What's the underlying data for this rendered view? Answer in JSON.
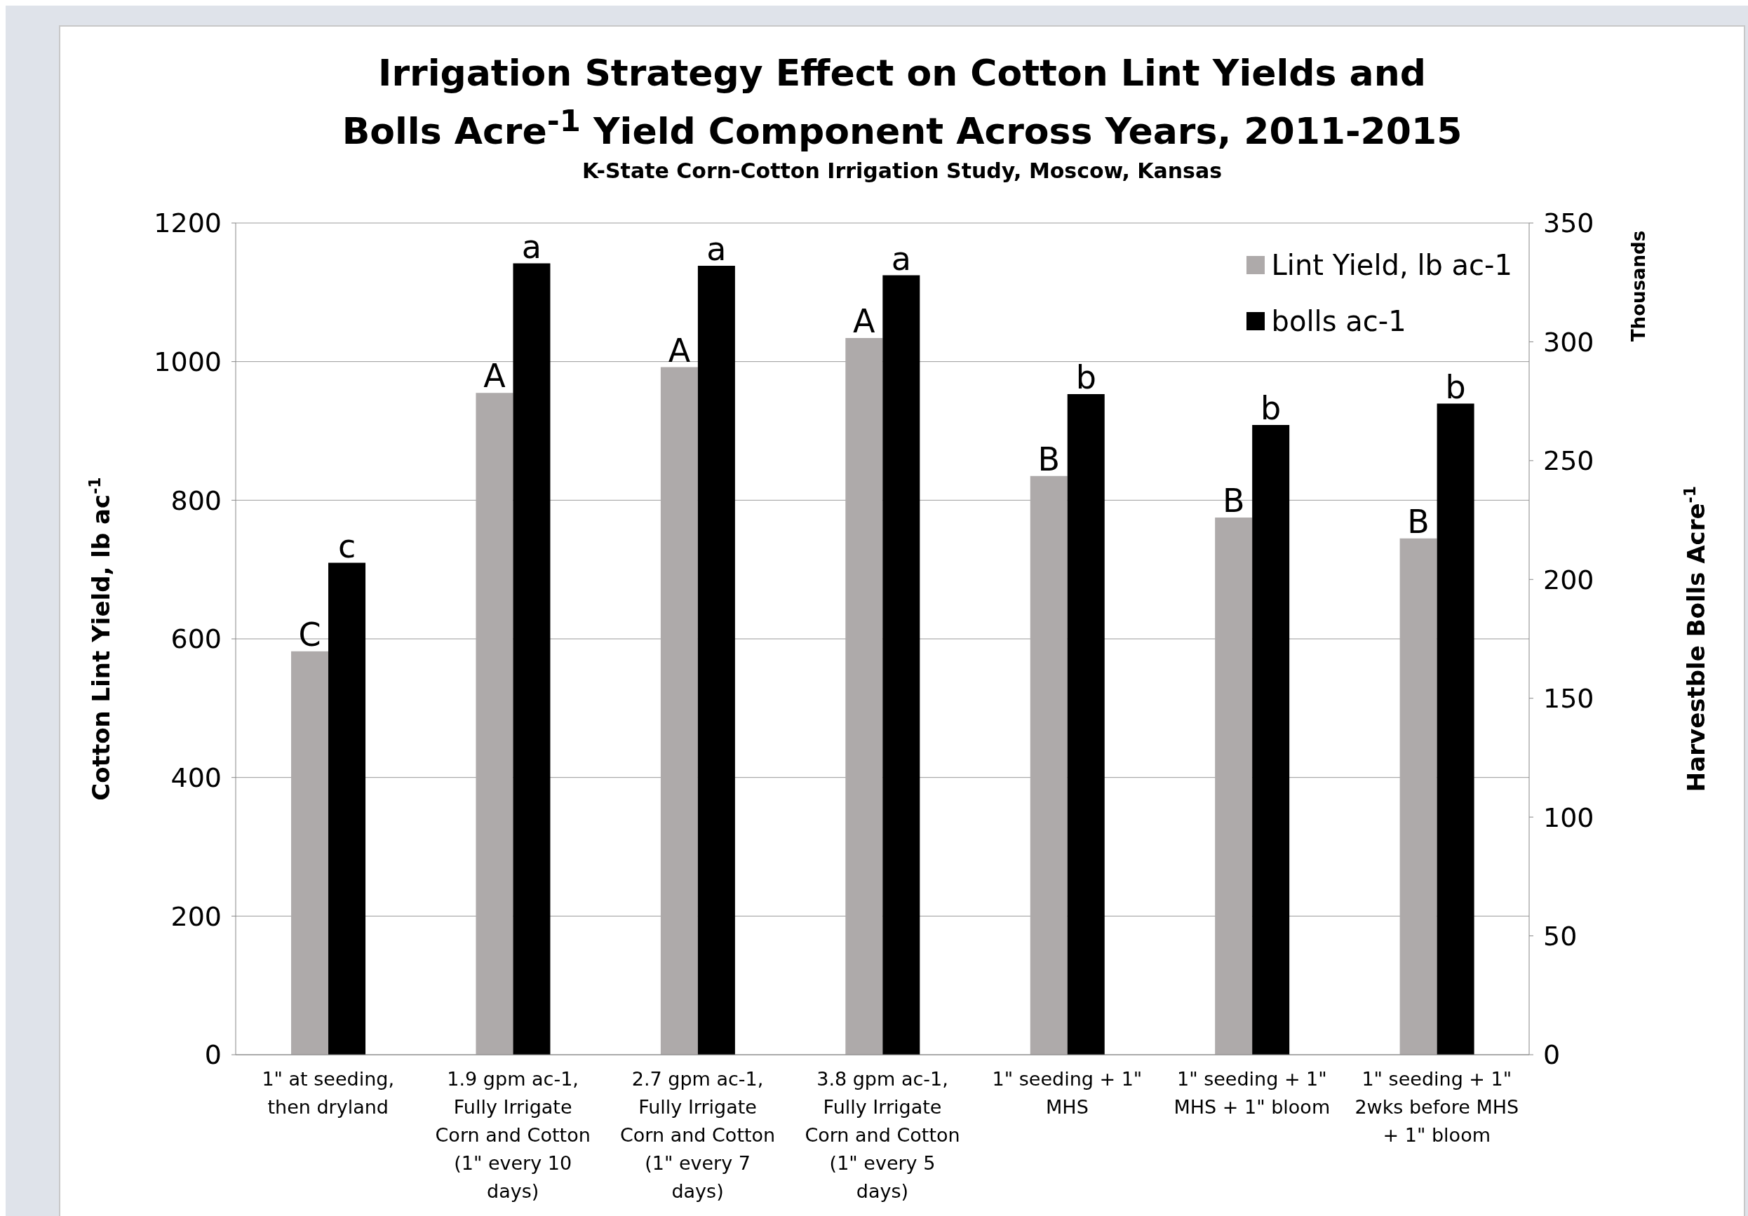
{
  "chart_data": {
    "type": "bar",
    "title": "Irrigation Strategy Effect on Cotton Lint Yields and\nBolls Acre$^{-1}$ Yield Component Across Years, 2011-2015",
    "subtitle": "K-State Corn-Cotton Irrigation Study, Moscow, Kansas",
    "ylabel": "Cotton Lint Yield, lb ac$^{-1}$",
    "y2label": "Harvestble Bolls Acre$^{-1}$",
    "annotations": [
      "Thousands"
    ],
    "categories": [
      "1\" at seeding, then dryland",
      "1.9 gpm ac-1, Fully Irrigate Corn and Cotton (1\" every 10 days)",
      "2.7 gpm ac-1, Fully Irrigate Corn and Cotton (1\" every 7 days)",
      "3.8 gpm ac-1, Fully Irrigate Corn and Cotton (1\" every 5 days)",
      "1\" seeding + 1\" MHS",
      "1\" seeding + 1\" MHS + 1\" bloom",
      "1\" seeding + 1\" 2wks before MHS + 1\" bloom"
    ],
    "series": [
      {
        "name": "Lint Yield, lb ac-1",
        "color": "#aeaaaa",
        "values": [
          582,
          955,
          992,
          1034,
          835,
          775,
          745
        ],
        "value_labels": [
          "C",
          "A",
          "A",
          "A",
          "B",
          "B",
          "B"
        ]
      },
      {
        "name": "bolls ac-1",
        "color": "#000000",
        "axis": "y2",
        "values": [
          207,
          333,
          332,
          328,
          278,
          265,
          274
        ],
        "value_labels": [
          "c",
          "a",
          "a",
          "a",
          "b",
          "b",
          "b"
        ]
      }
    ],
    "ylim": [
      0,
      1200
    ],
    "yticks": [
      0,
      200,
      400,
      600,
      800,
      1000,
      1200
    ],
    "y2lim": [
      0,
      350
    ],
    "y2ticks": [
      0,
      50,
      100,
      150,
      200,
      250,
      300,
      350
    ],
    "grid": "y",
    "legend": "top right"
  }
}
